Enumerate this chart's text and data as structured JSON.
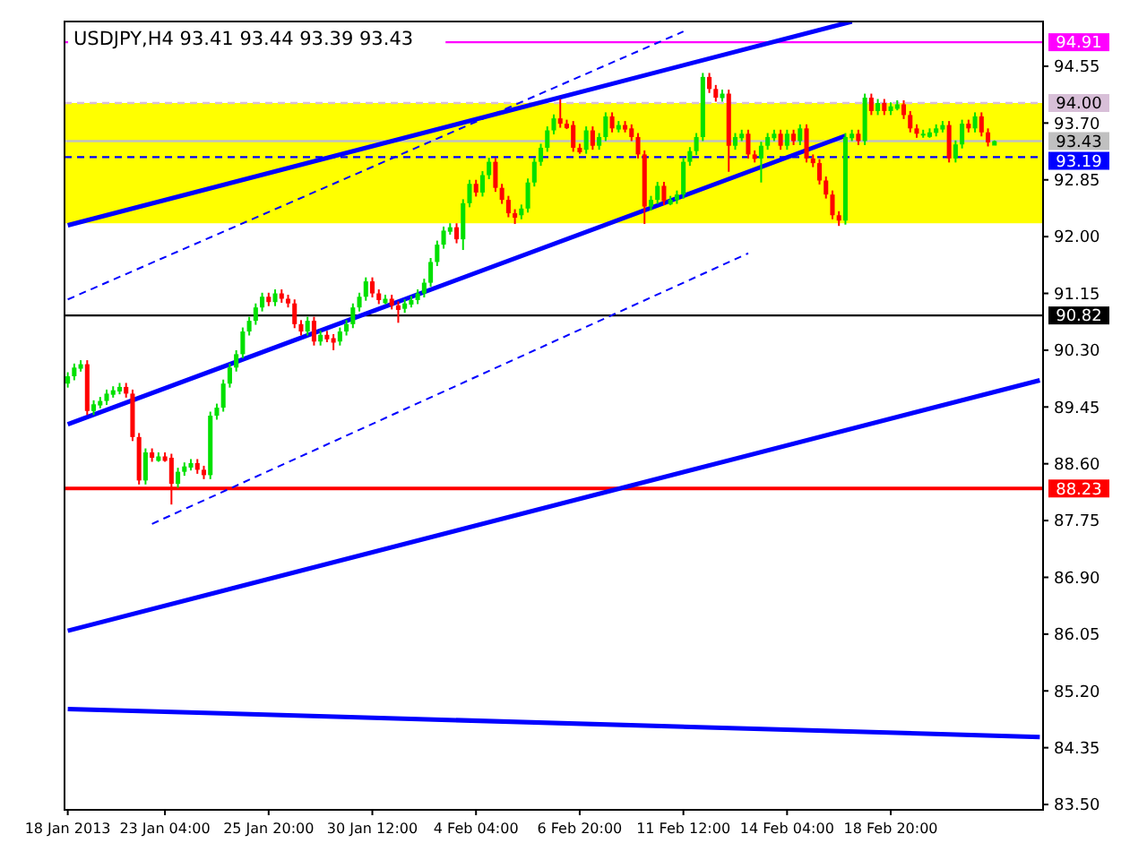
{
  "chart_data": {
    "type": "candlestick",
    "title": "USDJPY,H4 93.41 93.44 93.39 93.43",
    "categories": [
      "18 Jan 2013",
      null,
      null,
      null,
      null,
      null,
      null,
      null,
      null,
      null,
      null,
      null,
      null,
      null,
      null,
      "23 Jan 04:00",
      null,
      null,
      null,
      null,
      null,
      null,
      null,
      null,
      null,
      null,
      null,
      null,
      null,
      null,
      null,
      "25 Jan 20:00",
      null,
      null,
      null,
      null,
      null,
      null,
      null,
      null,
      null,
      null,
      null,
      null,
      null,
      null,
      null,
      "30 Jan 12:00",
      null,
      null,
      null,
      null,
      null,
      null,
      null,
      null,
      null,
      null,
      null,
      null,
      null,
      null,
      null,
      "4 Feb 04:00",
      null,
      null,
      null,
      null,
      null,
      null,
      null,
      null,
      null,
      null,
      null,
      null,
      null,
      null,
      null,
      "6 Feb 20:00",
      null,
      null,
      null,
      null,
      null,
      null,
      null,
      null,
      null,
      null,
      null,
      null,
      null,
      null,
      null,
      "11 Feb 12:00",
      null,
      null,
      null,
      null,
      null,
      null,
      null,
      null,
      null,
      null,
      null,
      null,
      null,
      null,
      null,
      "14 Feb 04:00",
      null,
      null,
      null,
      null,
      null,
      null,
      null,
      null,
      null,
      null,
      null,
      null,
      null,
      null,
      null,
      "18 Feb 20:00",
      null,
      null,
      null,
      null,
      null,
      null,
      null,
      null,
      null,
      null,
      null,
      null,
      null,
      null,
      null,
      null,
      null,
      null,
      null,
      null,
      null,
      null,
      null
    ],
    "ohlc": [
      [
        89.8,
        89.97,
        89.74,
        89.91
      ],
      [
        89.91,
        90.1,
        89.85,
        90.04
      ],
      [
        90.04,
        90.15,
        89.98,
        90.09
      ],
      [
        90.09,
        90.15,
        89.33,
        89.39
      ],
      [
        89.39,
        89.55,
        89.33,
        89.49
      ],
      [
        89.49,
        89.6,
        89.43,
        89.54
      ],
      [
        89.54,
        89.71,
        89.48,
        89.65
      ],
      [
        89.65,
        89.76,
        89.59,
        89.7
      ],
      [
        89.7,
        89.81,
        89.64,
        89.75
      ],
      [
        89.75,
        89.81,
        89.59,
        89.65
      ],
      [
        89.65,
        89.71,
        88.94,
        89.0
      ],
      [
        89.0,
        89.06,
        88.29,
        88.35
      ],
      [
        88.35,
        88.83,
        88.29,
        88.77
      ],
      [
        88.77,
        88.83,
        88.63,
        88.69
      ],
      [
        88.69,
        88.77,
        88.63,
        88.71
      ],
      [
        88.71,
        88.77,
        88.63,
        88.69
      ],
      [
        88.69,
        88.75,
        87.99,
        88.3
      ],
      [
        88.3,
        88.54,
        88.24,
        88.48
      ],
      [
        88.48,
        88.62,
        88.42,
        88.56
      ],
      [
        88.56,
        88.67,
        88.5,
        88.61
      ],
      [
        88.61,
        88.67,
        88.45,
        88.51
      ],
      [
        88.51,
        88.57,
        88.37,
        88.43
      ],
      [
        88.43,
        89.38,
        88.37,
        89.32
      ],
      [
        89.32,
        89.5,
        89.26,
        89.44
      ],
      [
        89.44,
        89.86,
        89.38,
        89.8
      ],
      [
        89.8,
        90.1,
        89.74,
        90.04
      ],
      [
        90.04,
        90.3,
        89.98,
        90.24
      ],
      [
        90.24,
        90.64,
        90.18,
        90.58
      ],
      [
        90.58,
        90.8,
        90.52,
        90.74
      ],
      [
        90.74,
        91.0,
        90.68,
        90.94
      ],
      [
        90.94,
        91.16,
        90.88,
        91.1
      ],
      [
        91.1,
        91.16,
        90.96,
        91.02
      ],
      [
        91.02,
        91.21,
        90.96,
        91.15
      ],
      [
        91.15,
        91.21,
        91.01,
        91.07
      ],
      [
        91.07,
        91.13,
        90.94,
        91.0
      ],
      [
        91.0,
        91.06,
        90.63,
        90.69
      ],
      [
        90.69,
        90.75,
        90.52,
        90.58
      ],
      [
        90.58,
        90.8,
        90.52,
        90.74
      ],
      [
        90.74,
        90.8,
        90.37,
        90.43
      ],
      [
        90.43,
        90.59,
        90.37,
        90.53
      ],
      [
        90.53,
        90.59,
        90.42,
        90.48
      ],
      [
        90.48,
        90.54,
        90.3,
        90.43
      ],
      [
        90.43,
        90.64,
        90.37,
        90.58
      ],
      [
        90.58,
        90.75,
        90.52,
        90.69
      ],
      [
        90.69,
        91.0,
        90.63,
        90.94
      ],
      [
        90.94,
        91.16,
        90.88,
        91.1
      ],
      [
        91.1,
        91.39,
        91.04,
        91.33
      ],
      [
        91.33,
        91.39,
        91.09,
        91.15
      ],
      [
        91.15,
        91.21,
        90.99,
        91.05
      ],
      [
        91.05,
        91.13,
        90.99,
        91.07
      ],
      [
        91.07,
        91.13,
        90.91,
        90.97
      ],
      [
        90.97,
        91.03,
        90.71,
        90.92
      ],
      [
        90.92,
        91.06,
        90.86,
        91.0
      ],
      [
        91.0,
        91.11,
        90.94,
        91.05
      ],
      [
        91.05,
        91.21,
        90.99,
        91.15
      ],
      [
        91.15,
        91.37,
        91.09,
        91.31
      ],
      [
        91.31,
        91.68,
        91.25,
        91.62
      ],
      [
        91.62,
        91.94,
        91.56,
        91.88
      ],
      [
        91.88,
        92.15,
        91.82,
        92.09
      ],
      [
        92.09,
        92.2,
        92.03,
        92.14
      ],
      [
        92.14,
        92.2,
        91.9,
        91.96
      ],
      [
        91.96,
        92.56,
        91.8,
        92.5
      ],
      [
        92.5,
        92.85,
        92.44,
        92.79
      ],
      [
        92.79,
        92.85,
        92.6,
        92.66
      ],
      [
        92.66,
        92.98,
        92.6,
        92.92
      ],
      [
        92.92,
        93.18,
        92.86,
        93.12
      ],
      [
        93.12,
        93.18,
        92.67,
        92.73
      ],
      [
        92.73,
        92.79,
        92.49,
        92.55
      ],
      [
        92.55,
        92.61,
        92.29,
        92.35
      ],
      [
        92.35,
        92.41,
        92.19,
        92.32
      ],
      [
        92.32,
        92.48,
        92.26,
        92.42
      ],
      [
        92.42,
        92.87,
        92.36,
        92.81
      ],
      [
        92.81,
        93.18,
        92.75,
        93.12
      ],
      [
        93.12,
        93.39,
        93.06,
        93.33
      ],
      [
        93.33,
        93.65,
        93.27,
        93.59
      ],
      [
        93.59,
        93.83,
        93.53,
        93.77
      ],
      [
        93.77,
        94.06,
        93.63,
        93.69
      ],
      [
        93.69,
        93.75,
        93.61,
        93.67
      ],
      [
        93.67,
        93.73,
        93.27,
        93.33
      ],
      [
        93.33,
        93.39,
        93.24,
        93.3
      ],
      [
        93.3,
        93.65,
        93.24,
        93.59
      ],
      [
        93.59,
        93.65,
        93.3,
        93.36
      ],
      [
        93.36,
        93.55,
        93.3,
        93.49
      ],
      [
        93.49,
        93.86,
        93.43,
        93.8
      ],
      [
        93.8,
        93.86,
        93.56,
        93.62
      ],
      [
        93.62,
        93.73,
        93.56,
        93.67
      ],
      [
        93.67,
        93.73,
        93.56,
        93.62
      ],
      [
        93.62,
        93.68,
        93.43,
        93.49
      ],
      [
        93.49,
        93.55,
        93.17,
        93.23
      ],
      [
        93.23,
        93.29,
        92.19,
        92.45
      ],
      [
        92.45,
        92.61,
        92.39,
        92.55
      ],
      [
        92.55,
        92.82,
        92.49,
        92.76
      ],
      [
        92.76,
        92.82,
        92.47,
        92.53
      ],
      [
        92.53,
        92.61,
        92.47,
        92.55
      ],
      [
        92.55,
        92.69,
        92.49,
        92.63
      ],
      [
        92.63,
        93.18,
        92.57,
        93.12
      ],
      [
        93.12,
        93.34,
        93.06,
        93.28
      ],
      [
        93.28,
        93.55,
        93.22,
        93.49
      ],
      [
        93.49,
        94.45,
        93.43,
        94.39
      ],
      [
        94.39,
        94.45,
        94.15,
        94.21
      ],
      [
        94.21,
        94.27,
        94.02,
        94.08
      ],
      [
        94.08,
        94.2,
        94.02,
        94.14
      ],
      [
        94.14,
        94.2,
        92.97,
        93.36
      ],
      [
        93.36,
        93.55,
        93.3,
        93.49
      ],
      [
        93.49,
        93.6,
        93.43,
        93.54
      ],
      [
        93.54,
        93.6,
        93.17,
        93.23
      ],
      [
        93.23,
        93.29,
        93.11,
        93.17
      ],
      [
        93.17,
        93.42,
        92.81,
        93.36
      ],
      [
        93.36,
        93.55,
        93.3,
        93.49
      ],
      [
        93.49,
        93.6,
        93.43,
        93.54
      ],
      [
        93.54,
        93.6,
        93.3,
        93.36
      ],
      [
        93.36,
        93.6,
        93.3,
        93.54
      ],
      [
        93.54,
        93.6,
        93.37,
        93.43
      ],
      [
        93.43,
        93.68,
        93.37,
        93.62
      ],
      [
        93.62,
        93.68,
        93.11,
        93.17
      ],
      [
        93.17,
        93.23,
        93.04,
        93.1
      ],
      [
        93.1,
        93.16,
        92.78,
        92.84
      ],
      [
        92.84,
        92.9,
        92.57,
        92.63
      ],
      [
        92.63,
        92.69,
        92.26,
        92.32
      ],
      [
        92.32,
        92.38,
        92.16,
        92.24
      ],
      [
        92.24,
        93.55,
        92.18,
        93.49
      ],
      [
        93.49,
        93.6,
        93.43,
        93.54
      ],
      [
        93.54,
        93.6,
        93.37,
        93.43
      ],
      [
        93.43,
        94.14,
        93.37,
        94.08
      ],
      [
        94.08,
        94.14,
        93.82,
        93.88
      ],
      [
        93.88,
        94.06,
        93.82,
        94.0
      ],
      [
        94.0,
        94.06,
        93.82,
        93.88
      ],
      [
        93.88,
        94.01,
        93.82,
        93.95
      ],
      [
        93.95,
        94.04,
        93.89,
        93.98
      ],
      [
        93.98,
        94.04,
        93.76,
        93.82
      ],
      [
        93.82,
        93.88,
        93.56,
        93.62
      ],
      [
        93.62,
        93.68,
        93.48,
        93.54
      ],
      [
        93.54,
        93.6,
        93.48,
        93.54
      ],
      [
        93.54,
        93.62,
        93.48,
        93.56
      ],
      [
        93.56,
        93.68,
        93.5,
        93.62
      ],
      [
        93.62,
        93.73,
        93.56,
        93.67
      ],
      [
        93.67,
        93.73,
        93.11,
        93.17
      ],
      [
        93.17,
        93.44,
        93.11,
        93.38
      ],
      [
        93.38,
        93.75,
        93.32,
        93.69
      ],
      [
        93.69,
        93.75,
        93.56,
        93.62
      ],
      [
        93.62,
        93.86,
        93.56,
        93.8
      ],
      [
        93.8,
        93.86,
        93.5,
        93.56
      ],
      [
        93.56,
        93.62,
        93.35,
        93.41
      ],
      [
        93.41,
        93.44,
        93.39,
        93.43
      ],
      null,
      null,
      null,
      null,
      null,
      null,
      null
    ],
    "series": [
      {
        "type": "line",
        "color": "#0000ff",
        "values": [
          92.17,
          null,
          null,
          null,
          null,
          null,
          null,
          null,
          null,
          null,
          null,
          null,
          null,
          null,
          null,
          null,
          null,
          null,
          null,
          null,
          null,
          null,
          null,
          null,
          null,
          null,
          null,
          null,
          null,
          null,
          null,
          null,
          null,
          null,
          null,
          null,
          null,
          null,
          null,
          null,
          null,
          null,
          null,
          null,
          null,
          null,
          null,
          null,
          null,
          null,
          null,
          null,
          null,
          null,
          null,
          null,
          null,
          null,
          null,
          null,
          null,
          null,
          null,
          null,
          null,
          null,
          null,
          null,
          null,
          null,
          null,
          null,
          null,
          null,
          null,
          null,
          null,
          null,
          null,
          null,
          null,
          null,
          null,
          null,
          null,
          null,
          null,
          null,
          null,
          null,
          null,
          null,
          null,
          null,
          null,
          null,
          null,
          null,
          null,
          null,
          null,
          null,
          null,
          null,
          null,
          null,
          null,
          null,
          null,
          null,
          null,
          null,
          null,
          null,
          null,
          null,
          null,
          null,
          null,
          null,
          null,
          95.22,
          null,
          null,
          null,
          null,
          null,
          null,
          null,
          null,
          null,
          null,
          null,
          null,
          null,
          null,
          null,
          null,
          null,
          null,
          null,
          null,
          null,
          null,
          null,
          null,
          null,
          null,
          null,
          null,
          null
        ]
      },
      {
        "type": "line",
        "color": "#0000ff",
        "values": [
          86.1,
          null,
          null,
          null,
          null,
          null,
          null,
          null,
          null,
          null,
          null,
          null,
          null,
          null,
          null,
          null,
          null,
          null,
          null,
          null,
          null,
          null,
          null,
          null,
          null,
          null,
          null,
          null,
          null,
          null,
          null,
          null,
          null,
          null,
          null,
          null,
          null,
          null,
          null,
          null,
          null,
          null,
          null,
          null,
          null,
          null,
          null,
          null,
          null,
          null,
          null,
          null,
          null,
          null,
          null,
          null,
          null,
          null,
          null,
          null,
          null,
          null,
          null,
          null,
          null,
          null,
          null,
          null,
          null,
          null,
          null,
          null,
          null,
          null,
          null,
          null,
          null,
          null,
          null,
          null,
          null,
          null,
          null,
          null,
          null,
          null,
          null,
          null,
          null,
          null,
          null,
          null,
          null,
          null,
          null,
          null,
          null,
          null,
          null,
          null,
          null,
          null,
          null,
          null,
          null,
          null,
          null,
          null,
          null,
          null,
          null,
          null,
          null,
          null,
          null,
          null,
          null,
          null,
          null,
          null,
          null,
          null,
          null,
          null,
          null,
          null,
          null,
          null,
          null,
          null,
          null,
          null,
          null,
          null,
          null,
          null,
          null,
          null,
          null,
          null,
          null,
          null,
          null,
          null,
          null,
          null,
          null,
          null,
          null,
          null,
          89.85
        ]
      },
      {
        "type": "line",
        "color": "#0000ff",
        "values": [
          84.93,
          null,
          null,
          null,
          null,
          null,
          null,
          null,
          null,
          null,
          null,
          null,
          null,
          null,
          null,
          null,
          null,
          null,
          null,
          null,
          null,
          null,
          null,
          null,
          null,
          null,
          null,
          null,
          null,
          null,
          null,
          null,
          null,
          null,
          null,
          null,
          null,
          null,
          null,
          null,
          null,
          null,
          null,
          null,
          null,
          null,
          null,
          null,
          null,
          null,
          null,
          null,
          null,
          null,
          null,
          null,
          null,
          null,
          null,
          null,
          null,
          null,
          null,
          null,
          null,
          null,
          null,
          null,
          null,
          null,
          null,
          null,
          null,
          null,
          null,
          null,
          null,
          null,
          null,
          null,
          null,
          null,
          null,
          null,
          null,
          null,
          null,
          null,
          null,
          null,
          null,
          null,
          null,
          null,
          null,
          null,
          null,
          null,
          null,
          null,
          null,
          null,
          null,
          null,
          null,
          null,
          null,
          null,
          null,
          null,
          null,
          null,
          null,
          null,
          null,
          null,
          null,
          null,
          null,
          null,
          null,
          null,
          null,
          null,
          null,
          null,
          null,
          null,
          null,
          null,
          null,
          null,
          null,
          null,
          null,
          null,
          null,
          null,
          null,
          null,
          null,
          null,
          null,
          null,
          null,
          null,
          null,
          null,
          null,
          null,
          84.51
        ]
      },
      {
        "type": "line",
        "color": "#0000ff",
        "values": [
          89.19,
          null,
          null,
          null,
          null,
          null,
          null,
          null,
          null,
          null,
          null,
          null,
          null,
          null,
          null,
          null,
          null,
          null,
          null,
          null,
          null,
          null,
          null,
          null,
          null,
          null,
          null,
          null,
          null,
          null,
          null,
          null,
          null,
          null,
          null,
          null,
          null,
          null,
          null,
          null,
          null,
          null,
          null,
          null,
          null,
          null,
          null,
          null,
          null,
          null,
          null,
          null,
          null,
          null,
          null,
          null,
          null,
          null,
          null,
          null,
          null,
          null,
          null,
          null,
          null,
          null,
          null,
          null,
          null,
          null,
          null,
          null,
          null,
          null,
          null,
          null,
          null,
          null,
          null,
          null,
          null,
          null,
          null,
          null,
          null,
          null,
          null,
          null,
          null,
          null,
          null,
          null,
          null,
          null,
          null,
          null,
          null,
          null,
          null,
          null,
          null,
          null,
          null,
          null,
          null,
          null,
          null,
          null,
          null,
          null,
          null,
          null,
          null,
          null,
          null,
          null,
          null,
          null,
          null,
          null,
          93.51,
          null,
          null,
          null,
          null,
          null,
          null,
          null,
          null,
          null,
          null,
          null,
          null,
          null,
          null,
          null,
          null,
          null,
          null,
          null,
          null,
          null,
          null,
          null,
          null,
          null,
          null,
          null,
          null,
          null,
          null
        ]
      },
      {
        "type": "line",
        "color": "#0000ff",
        "line_style": "dashed",
        "values": [
          91.06,
          null,
          null,
          null,
          null,
          null,
          null,
          null,
          null,
          null,
          null,
          null,
          null,
          null,
          null,
          null,
          null,
          null,
          null,
          null,
          null,
          null,
          null,
          null,
          null,
          null,
          null,
          null,
          null,
          null,
          null,
          null,
          null,
          null,
          null,
          null,
          null,
          null,
          null,
          null,
          null,
          null,
          null,
          null,
          null,
          null,
          null,
          null,
          null,
          null,
          null,
          null,
          null,
          null,
          null,
          null,
          null,
          null,
          null,
          null,
          null,
          null,
          null,
          null,
          null,
          null,
          null,
          null,
          null,
          null,
          null,
          null,
          null,
          null,
          null,
          null,
          null,
          null,
          null,
          null,
          null,
          null,
          null,
          null,
          null,
          null,
          null,
          null,
          null,
          null,
          null,
          null,
          null,
          null,
          null,
          95.07,
          null,
          null,
          null,
          null,
          null,
          null,
          null,
          null,
          null,
          null,
          null,
          null,
          null,
          null,
          null,
          null,
          null,
          null,
          null,
          null,
          null,
          null,
          null,
          null,
          null,
          null,
          null,
          null,
          null,
          null,
          null,
          null,
          null,
          null,
          null,
          null,
          null,
          null,
          null,
          null,
          null,
          null,
          null,
          null,
          null,
          null,
          null,
          null,
          null,
          null,
          null,
          null,
          null,
          null,
          null
        ]
      },
      {
        "type": "line",
        "color": "#0000ff",
        "line_style": "dashed",
        "values": [
          null,
          null,
          null,
          null,
          null,
          null,
          null,
          null,
          null,
          null,
          null,
          null,
          null,
          87.7,
          null,
          null,
          null,
          null,
          null,
          null,
          null,
          null,
          null,
          null,
          null,
          null,
          null,
          null,
          null,
          null,
          null,
          null,
          null,
          null,
          null,
          null,
          null,
          null,
          null,
          null,
          null,
          null,
          null,
          null,
          null,
          null,
          null,
          null,
          null,
          null,
          null,
          null,
          null,
          null,
          null,
          null,
          null,
          null,
          null,
          null,
          null,
          null,
          null,
          null,
          null,
          null,
          null,
          null,
          null,
          null,
          null,
          null,
          null,
          null,
          null,
          null,
          null,
          null,
          null,
          null,
          null,
          null,
          null,
          null,
          null,
          null,
          null,
          null,
          null,
          null,
          null,
          null,
          null,
          null,
          null,
          null,
          null,
          null,
          null,
          null,
          null,
          null,
          null,
          null,
          null,
          91.75,
          null,
          null,
          null,
          null,
          null,
          null,
          null,
          null,
          null,
          null,
          null,
          null,
          null,
          null,
          null,
          null,
          null,
          null,
          null,
          null,
          null,
          null,
          null,
          null,
          null,
          null,
          null,
          null,
          null,
          null,
          null,
          null,
          null,
          null,
          null,
          null,
          null,
          null,
          null,
          null,
          null,
          null,
          null,
          null,
          null
        ]
      }
    ],
    "ylim": [
      83.42,
      95.22
    ],
    "yticks": [
      {
        "value": 94.55,
        "label": "94.55"
      },
      {
        "value": 93.7,
        "label": "93.70"
      },
      {
        "value": 92.85,
        "label": "92.85"
      },
      {
        "value": 92,
        "label": "92.00"
      },
      {
        "value": 91.15,
        "label": "91.15"
      },
      {
        "value": 90.3,
        "label": "90.30"
      },
      {
        "value": 89.45,
        "label": "89.45"
      },
      {
        "value": 88.6,
        "label": "88.60"
      },
      {
        "value": 87.75,
        "label": "87.75"
      },
      {
        "value": 86.9,
        "label": "86.90"
      },
      {
        "value": 86.05,
        "label": "86.05"
      },
      {
        "value": 85.2,
        "label": "85.20"
      },
      {
        "value": 84.35,
        "label": "84.35"
      },
      {
        "value": 83.5,
        "label": "83.50"
      }
    ],
    "bands": [
      {
        "axis": "y",
        "from": 92.2,
        "to": 94.0,
        "color": "#ffff00"
      }
    ],
    "ref_lines": [
      {
        "axis": "y",
        "value": 94.91,
        "label": "94.91",
        "color": "#ff00ff"
      },
      {
        "axis": "y",
        "value": 94.0,
        "label": "94.00",
        "color": "#d8bfd8",
        "line_style": "dashed"
      },
      {
        "axis": "y",
        "value": 93.43,
        "label": "93.43",
        "color": "#c0c0c0"
      },
      {
        "axis": "y",
        "value": 93.19,
        "label": "93.19",
        "color": "#0000ff",
        "line_style": "dashed"
      },
      {
        "axis": "y",
        "value": 90.82,
        "label": "90.82",
        "color": "#000000"
      },
      {
        "axis": "y",
        "value": 88.23,
        "label": "88.23",
        "color": "#ff0000"
      }
    ],
    "grid": false
  }
}
